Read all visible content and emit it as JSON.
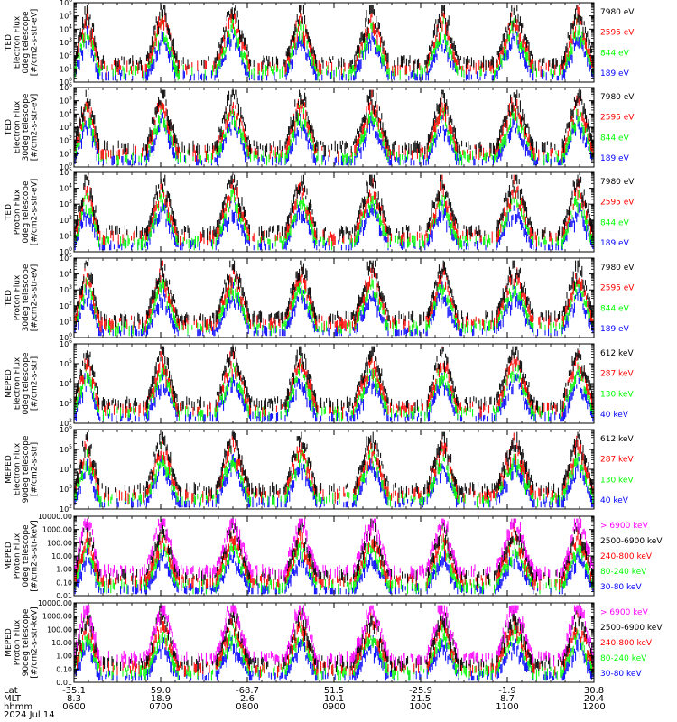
{
  "colors": {
    "black": "#000000",
    "red": "#ff0000",
    "green": "#00ff00",
    "blue": "#0000ff",
    "magenta": "#ff00ff"
  },
  "chart_data": [
    {
      "type": "scatter",
      "ylabel_lines": [
        "TED",
        "Electron Flux",
        "0deg telescope",
        "[#/cm2-s-str-eV]"
      ],
      "scale": "log",
      "ylim": [
        1,
        1000000
      ],
      "yticks": [
        {
          "value": 1,
          "label": "10",
          "exp": "0"
        },
        {
          "value": 10,
          "label": "10",
          "exp": "1"
        },
        {
          "value": 100,
          "label": "10",
          "exp": "2"
        },
        {
          "value": 1000,
          "label": "10",
          "exp": "3"
        },
        {
          "value": 10000,
          "label": "10",
          "exp": "4"
        },
        {
          "value": 100000,
          "label": "10",
          "exp": "5"
        },
        {
          "value": 1000000,
          "label": "10",
          "exp": "6"
        }
      ],
      "legend": [
        {
          "label": "7980 eV",
          "color": "#000000"
        },
        {
          "label": "2595 eV",
          "color": "#ff0000"
        },
        {
          "label": "844 eV",
          "color": "#00ff00"
        },
        {
          "label": "189 eV",
          "color": "#0000ff"
        }
      ]
    },
    {
      "type": "scatter",
      "ylabel_lines": [
        "TED",
        "Electron Flux",
        "30deg telescope",
        "[#/cm2-s-str-eV]"
      ],
      "scale": "log",
      "ylim": [
        1,
        1000000
      ],
      "yticks": [
        {
          "value": 1,
          "label": "10",
          "exp": "0"
        },
        {
          "value": 10,
          "label": "10",
          "exp": "1"
        },
        {
          "value": 100,
          "label": "10",
          "exp": "2"
        },
        {
          "value": 1000,
          "label": "10",
          "exp": "3"
        },
        {
          "value": 10000,
          "label": "10",
          "exp": "4"
        },
        {
          "value": 100000,
          "label": "10",
          "exp": "5"
        },
        {
          "value": 1000000,
          "label": "10",
          "exp": "6"
        }
      ],
      "legend": [
        {
          "label": "7980 eV",
          "color": "#000000"
        },
        {
          "label": "2595 eV",
          "color": "#ff0000"
        },
        {
          "label": "844 eV",
          "color": "#00ff00"
        },
        {
          "label": "189 eV",
          "color": "#0000ff"
        }
      ]
    },
    {
      "type": "scatter",
      "ylabel_lines": [
        "TED",
        "Proton Flux",
        "0deg telescope",
        "[#/cm2-s-str-eV]"
      ],
      "scale": "log",
      "ylim": [
        1,
        100000
      ],
      "yticks": [
        {
          "value": 1,
          "label": "10",
          "exp": "0"
        },
        {
          "value": 10,
          "label": "10",
          "exp": "1"
        },
        {
          "value": 100,
          "label": "10",
          "exp": "2"
        },
        {
          "value": 1000,
          "label": "10",
          "exp": "3"
        },
        {
          "value": 10000,
          "label": "10",
          "exp": "4"
        },
        {
          "value": 100000,
          "label": "10",
          "exp": "5"
        }
      ],
      "legend": [
        {
          "label": "7980 eV",
          "color": "#000000"
        },
        {
          "label": "2595 eV",
          "color": "#ff0000"
        },
        {
          "label": "844 eV",
          "color": "#00ff00"
        },
        {
          "label": "189 eV",
          "color": "#0000ff"
        }
      ]
    },
    {
      "type": "scatter",
      "ylabel_lines": [
        "TED",
        "Proton Flux",
        "30deg telescope",
        "[#/cm2-s-str-eV]"
      ],
      "scale": "log",
      "ylim": [
        1,
        100000
      ],
      "yticks": [
        {
          "value": 1,
          "label": "10",
          "exp": "0"
        },
        {
          "value": 10,
          "label": "10",
          "exp": "1"
        },
        {
          "value": 100,
          "label": "10",
          "exp": "2"
        },
        {
          "value": 1000,
          "label": "10",
          "exp": "3"
        },
        {
          "value": 10000,
          "label": "10",
          "exp": "4"
        },
        {
          "value": 100000,
          "label": "10",
          "exp": "5"
        }
      ],
      "legend": [
        {
          "label": "7980 eV",
          "color": "#000000"
        },
        {
          "label": "2595 eV",
          "color": "#ff0000"
        },
        {
          "label": "844 eV",
          "color": "#00ff00"
        },
        {
          "label": "189 eV",
          "color": "#0000ff"
        }
      ]
    },
    {
      "type": "scatter",
      "ylabel_lines": [
        "MEPED",
        "Electron Flux",
        "0deg telescope",
        "[#/cm2-s-str]"
      ],
      "scale": "log",
      "ylim": [
        100,
        1000000
      ],
      "yticks": [
        {
          "value": 100,
          "label": "10",
          "exp": "2"
        },
        {
          "value": 1000,
          "label": "10",
          "exp": "3"
        },
        {
          "value": 10000,
          "label": "10",
          "exp": "4"
        },
        {
          "value": 100000,
          "label": "10",
          "exp": "5"
        },
        {
          "value": 1000000,
          "label": "10",
          "exp": "6"
        }
      ],
      "legend": [
        {
          "label": "612 keV",
          "color": "#000000"
        },
        {
          "label": "287 keV",
          "color": "#ff0000"
        },
        {
          "label": "130 keV",
          "color": "#00ff00"
        },
        {
          "label": "40 keV",
          "color": "#0000ff"
        }
      ]
    },
    {
      "type": "scatter",
      "ylabel_lines": [
        "MEPED",
        "Electron Flux",
        "90deg telescope",
        "[#/cm2-s-str]"
      ],
      "scale": "log",
      "ylim": [
        100,
        1000000
      ],
      "yticks": [
        {
          "value": 100,
          "label": "10",
          "exp": "2"
        },
        {
          "value": 1000,
          "label": "10",
          "exp": "3"
        },
        {
          "value": 10000,
          "label": "10",
          "exp": "4"
        },
        {
          "value": 100000,
          "label": "10",
          "exp": "5"
        },
        {
          "value": 1000000,
          "label": "10",
          "exp": "6"
        }
      ],
      "legend": [
        {
          "label": "612 keV",
          "color": "#000000"
        },
        {
          "label": "287 keV",
          "color": "#ff0000"
        },
        {
          "label": "130 keV",
          "color": "#00ff00"
        },
        {
          "label": "40 keV",
          "color": "#0000ff"
        }
      ]
    },
    {
      "type": "scatter",
      "ylabel_lines": [
        "MEPED",
        "Proton Flux",
        "0deg telescope",
        "[#/cm2-s-str-keV]"
      ],
      "scale": "log",
      "ylim": [
        0.01,
        10000
      ],
      "yticks": [
        {
          "value": 0.01,
          "label": "0.01"
        },
        {
          "value": 0.1,
          "label": "0.10"
        },
        {
          "value": 1,
          "label": "1.00"
        },
        {
          "value": 10,
          "label": "10.00"
        },
        {
          "value": 100,
          "label": "100.00"
        },
        {
          "value": 1000,
          "label": "1000.00"
        },
        {
          "value": 10000,
          "label": "10000.00"
        }
      ],
      "legend": [
        {
          "label": "> 6900 keV",
          "color": "#ff00ff"
        },
        {
          "label": "2500-6900 keV",
          "color": "#000000"
        },
        {
          "label": "240-800 keV",
          "color": "#ff0000"
        },
        {
          "label": "80-240 keV",
          "color": "#00ff00"
        },
        {
          "label": "30-80 keV",
          "color": "#0000ff"
        }
      ]
    },
    {
      "type": "scatter",
      "ylabel_lines": [
        "MEPED",
        "Proton Flux",
        "90deg telescope",
        "[#/cm2-s-str-keV]"
      ],
      "scale": "log",
      "ylim": [
        0.01,
        10000
      ],
      "yticks": [
        {
          "value": 0.01,
          "label": "0.01"
        },
        {
          "value": 0.1,
          "label": "0.10"
        },
        {
          "value": 1,
          "label": "1.00"
        },
        {
          "value": 10,
          "label": "10.00"
        },
        {
          "value": 100,
          "label": "100.00"
        },
        {
          "value": 1000,
          "label": "1000.00"
        },
        {
          "value": 10000,
          "label": "10000.00"
        }
      ],
      "legend": [
        {
          "label": "> 6900 keV",
          "color": "#ff00ff"
        },
        {
          "label": "2500-6900 keV",
          "color": "#000000"
        },
        {
          "label": "240-800 keV",
          "color": "#ff0000"
        },
        {
          "label": "80-240 keV",
          "color": "#00ff00"
        },
        {
          "label": "30-80 keV",
          "color": "#0000ff"
        }
      ]
    }
  ],
  "x_axis": {
    "row_labels": [
      "Lat",
      "MLT",
      "hhmm",
      "2024 Jul 14"
    ],
    "xlim_minutes": [
      0,
      360
    ],
    "ticks": [
      {
        "minute": 0,
        "lat": "-35.1",
        "mlt": "8.3",
        "hhmm": "0600"
      },
      {
        "minute": 60,
        "lat": "59.0",
        "mlt": "18.9",
        "hhmm": "0700"
      },
      {
        "minute": 120,
        "lat": "-68.7",
        "mlt": "2.6",
        "hhmm": "0800"
      },
      {
        "minute": 180,
        "lat": "51.5",
        "mlt": "10.1",
        "hhmm": "0900"
      },
      {
        "minute": 240,
        "lat": "-25.9",
        "mlt": "21.5",
        "hhmm": "1000"
      },
      {
        "minute": 300,
        "lat": "-1.9",
        "mlt": "8.7",
        "hhmm": "1100"
      },
      {
        "minute": 360,
        "lat": "30.8",
        "mlt": "20.4",
        "hhmm": "1200"
      }
    ]
  }
}
